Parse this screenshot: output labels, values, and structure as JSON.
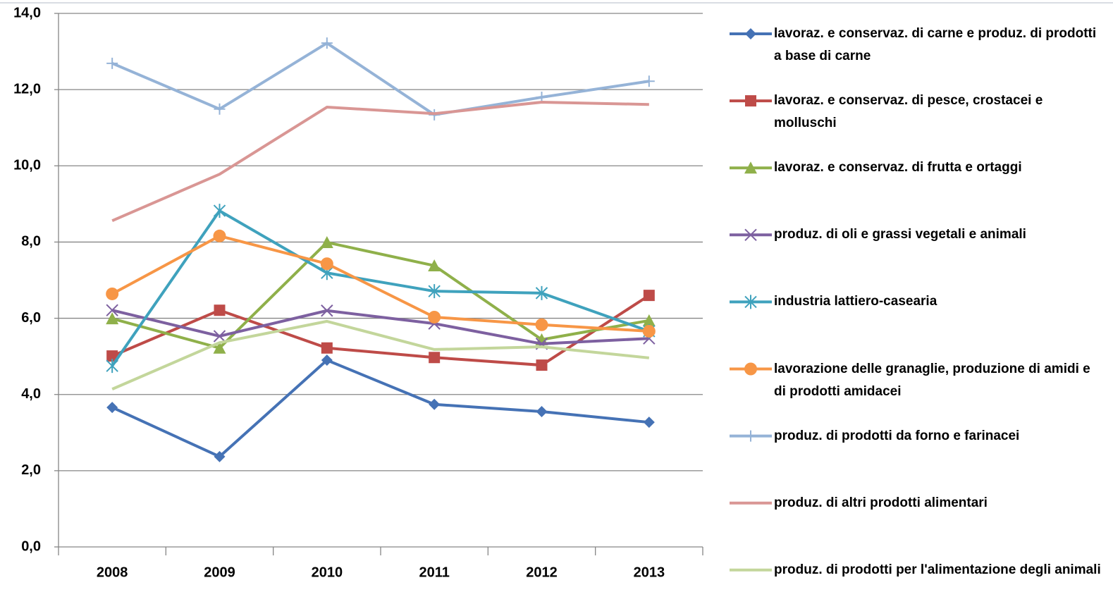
{
  "chart_data": {
    "type": "line",
    "categories": [
      "2008",
      "2009",
      "2010",
      "2011",
      "2012",
      "2013"
    ],
    "ylim": [
      0,
      14
    ],
    "yticks": [
      {
        "value": 0,
        "label": "0,0"
      },
      {
        "value": 2,
        "label": "2,0"
      },
      {
        "value": 4,
        "label": "4,0"
      },
      {
        "value": 6,
        "label": "6,0"
      },
      {
        "value": 8,
        "label": "8,0"
      },
      {
        "value": 10,
        "label": "10,0"
      },
      {
        "value": 12,
        "label": "12,0"
      },
      {
        "value": 14,
        "label": "14,0"
      }
    ],
    "grid": true,
    "legend": "right",
    "series": [
      {
        "name": "lavoraz. e conservaz. di carne e produz. di prodotti a base di carne",
        "color": "#4572b5",
        "marker": "diamond",
        "values": [
          3.66,
          2.37,
          4.9,
          3.74,
          3.55,
          3.27
        ]
      },
      {
        "name": "lavoraz. e conservaz. di pesce, crostacei e molluschi",
        "color": "#be4b48",
        "marker": "square",
        "values": [
          5.01,
          6.21,
          5.22,
          4.97,
          4.77,
          6.6
        ]
      },
      {
        "name": "lavoraz. e conservaz. di frutta e ortaggi",
        "color": "#8fb04a",
        "marker": "triangle",
        "values": [
          5.99,
          5.22,
          7.99,
          7.38,
          5.44,
          5.94
        ]
      },
      {
        "name": "produz. di oli e grassi vegetali e animali",
        "color": "#7d60a0",
        "marker": "x",
        "values": [
          6.21,
          5.53,
          6.2,
          5.86,
          5.33,
          5.47
        ]
      },
      {
        "name": "industria lattiero-casearia",
        "color": "#3fa2bd",
        "marker": "star",
        "values": [
          4.75,
          8.82,
          7.19,
          6.71,
          6.66,
          5.66
        ]
      },
      {
        "name": "lavorazione delle granaglie, produzione di amidi e di prodotti amidacei",
        "color": "#f79646",
        "marker": "circle",
        "values": [
          6.64,
          8.16,
          7.43,
          6.03,
          5.83,
          5.66
        ]
      },
      {
        "name": "produz. di prodotti da forno e farinacei",
        "color": "#95b3d7",
        "marker": "plus",
        "values": [
          12.69,
          11.49,
          13.22,
          11.34,
          11.8,
          12.22
        ]
      },
      {
        "name": "produz. di altri prodotti alimentari",
        "color": "#d99694",
        "marker": "none",
        "values": [
          8.56,
          9.78,
          11.54,
          11.37,
          11.67,
          11.61
        ]
      },
      {
        "name": "produz. di prodotti per l'alimentazione degli animali",
        "color": "#c3d69b",
        "marker": "none",
        "values": [
          4.14,
          5.36,
          5.92,
          5.18,
          5.25,
          4.96
        ]
      }
    ]
  }
}
